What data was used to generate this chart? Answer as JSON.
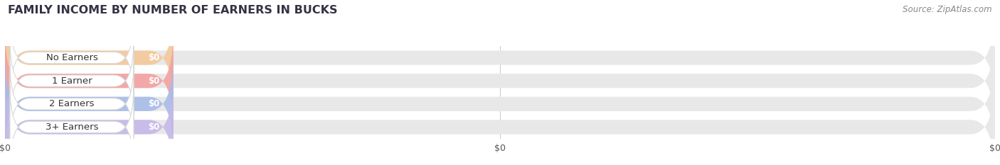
{
  "title": "FAMILY INCOME BY NUMBER OF EARNERS IN BUCKS",
  "source_text": "Source: ZipAtlas.com",
  "categories": [
    "No Earners",
    "1 Earner",
    "2 Earners",
    "3+ Earners"
  ],
  "values": [
    0,
    0,
    0,
    0
  ],
  "bar_colors": [
    "#f5c899",
    "#f5a0a0",
    "#a8bce8",
    "#c5b8e8"
  ],
  "track_color": "#e8e8e8",
  "xlim": [
    0,
    100
  ],
  "title_fontsize": 11.5,
  "title_color": "#333344",
  "label_fontsize": 9.5,
  "value_fontsize": 8.5,
  "source_fontsize": 8.5,
  "background_color": "#ffffff",
  "bar_height": 0.62,
  "tick_label_color": "#555555"
}
